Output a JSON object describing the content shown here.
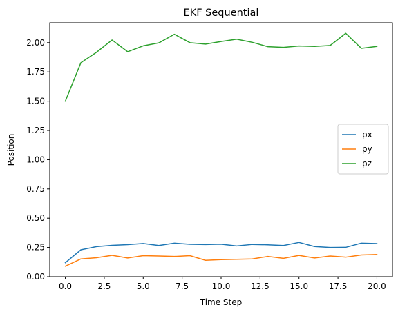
{
  "chart_data": {
    "type": "line",
    "title": "EKF Sequential",
    "xlabel": "Time Step",
    "ylabel": "Position",
    "xlim": [
      -1.0,
      21.0
    ],
    "ylim": [
      0.0,
      2.17
    ],
    "xticks": [
      "0.0",
      "2.5",
      "5.0",
      "7.5",
      "10.0",
      "12.5",
      "15.0",
      "17.5",
      "20.0"
    ],
    "yticks": [
      "0.00",
      "0.25",
      "0.50",
      "0.75",
      "1.00",
      "1.25",
      "1.50",
      "1.75",
      "2.00"
    ],
    "x": [
      0,
      1,
      2,
      3,
      4,
      5,
      6,
      7,
      8,
      9,
      10,
      11,
      12,
      13,
      14,
      15,
      16,
      17,
      18,
      19,
      20
    ],
    "grid": false,
    "legend_position": "center-right",
    "series": [
      {
        "name": "px",
        "color": "#1f77b4",
        "values": [
          0.12,
          0.23,
          0.257,
          0.268,
          0.274,
          0.284,
          0.267,
          0.287,
          0.277,
          0.275,
          0.278,
          0.263,
          0.276,
          0.273,
          0.267,
          0.293,
          0.258,
          0.25,
          0.251,
          0.287,
          0.283
        ]
      },
      {
        "name": "py",
        "color": "#ff7f0e",
        "values": [
          0.09,
          0.152,
          0.162,
          0.183,
          0.16,
          0.18,
          0.177,
          0.173,
          0.18,
          0.14,
          0.146,
          0.149,
          0.152,
          0.173,
          0.157,
          0.182,
          0.16,
          0.177,
          0.167,
          0.186,
          0.19
        ]
      },
      {
        "name": "pz",
        "color": "#2ca02c",
        "values": [
          1.5,
          1.829,
          1.918,
          2.023,
          1.923,
          1.973,
          1.998,
          2.072,
          2.0,
          1.988,
          2.01,
          2.03,
          2.003,
          1.966,
          1.96,
          1.972,
          1.968,
          1.976,
          2.08,
          1.952,
          1.968
        ]
      }
    ]
  }
}
